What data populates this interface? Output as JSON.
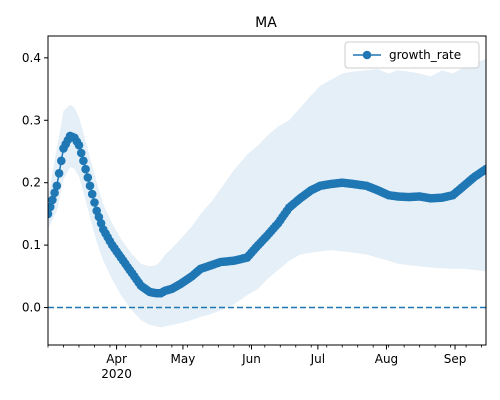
{
  "chart_data": {
    "type": "line",
    "title": "MA",
    "x_unit": "date",
    "xlim": [
      "2020-03-01",
      "2020-09-15"
    ],
    "ylim": [
      -0.06,
      0.435
    ],
    "yticks": [
      0.0,
      0.1,
      0.2,
      0.3,
      0.4
    ],
    "ytick_labels": [
      "0.0",
      "0.1",
      "0.2",
      "0.3",
      "0.4"
    ],
    "xticks": [
      {
        "date": "2020-04-01",
        "label": "Apr",
        "sublabel": "2020"
      },
      {
        "date": "2020-05-01",
        "label": "May",
        "sublabel": ""
      },
      {
        "date": "2020-06-01",
        "label": "Jun",
        "sublabel": ""
      },
      {
        "date": "2020-07-01",
        "label": "Jul",
        "sublabel": ""
      },
      {
        "date": "2020-08-01",
        "label": "Aug",
        "sublabel": ""
      },
      {
        "date": "2020-09-01",
        "label": "Sep",
        "sublabel": ""
      }
    ],
    "grid": false,
    "legend": {
      "position": "top-right",
      "entries": [
        "growth_rate"
      ]
    },
    "reference_line": {
      "y": 0.0,
      "style": "dashed"
    },
    "colors": {
      "line": "#1f77b4",
      "band": "#dce9f5"
    },
    "series": [
      {
        "name": "growth_rate",
        "marker": "circle",
        "x": [
          "2020-03-01",
          "2020-03-05",
          "2020-03-08",
          "2020-03-11",
          "2020-03-13",
          "2020-03-15",
          "2020-03-17",
          "2020-03-20",
          "2020-03-23",
          "2020-03-26",
          "2020-03-30",
          "2020-04-03",
          "2020-04-08",
          "2020-04-12",
          "2020-04-16",
          "2020-04-19",
          "2020-04-21",
          "2020-04-23",
          "2020-04-26",
          "2020-04-30",
          "2020-05-05",
          "2020-05-09",
          "2020-05-14",
          "2020-05-18",
          "2020-05-24",
          "2020-05-30",
          "2020-06-04",
          "2020-06-08",
          "2020-06-13",
          "2020-06-18",
          "2020-06-23",
          "2020-06-28",
          "2020-07-02",
          "2020-07-07",
          "2020-07-12",
          "2020-07-17",
          "2020-07-23",
          "2020-07-28",
          "2020-08-02",
          "2020-08-06",
          "2020-08-11",
          "2020-08-16",
          "2020-08-21",
          "2020-08-26",
          "2020-08-31",
          "2020-09-05",
          "2020-09-10",
          "2020-09-15"
        ],
        "y": [
          0.15,
          0.195,
          0.255,
          0.275,
          0.272,
          0.26,
          0.235,
          0.195,
          0.155,
          0.125,
          0.1,
          0.08,
          0.055,
          0.035,
          0.025,
          0.023,
          0.023,
          0.027,
          0.03,
          0.038,
          0.05,
          0.062,
          0.068,
          0.073,
          0.075,
          0.08,
          0.1,
          0.115,
          0.135,
          0.16,
          0.175,
          0.188,
          0.195,
          0.198,
          0.2,
          0.198,
          0.195,
          0.188,
          0.18,
          0.178,
          0.177,
          0.178,
          0.175,
          0.176,
          0.18,
          0.195,
          0.21,
          0.222
        ],
        "upper": [
          0.175,
          0.255,
          0.315,
          0.325,
          0.32,
          0.305,
          0.28,
          0.24,
          0.2,
          0.165,
          0.135,
          0.11,
          0.085,
          0.07,
          0.066,
          0.068,
          0.075,
          0.085,
          0.095,
          0.11,
          0.13,
          0.15,
          0.17,
          0.19,
          0.22,
          0.245,
          0.26,
          0.275,
          0.29,
          0.3,
          0.32,
          0.34,
          0.355,
          0.365,
          0.375,
          0.378,
          0.38,
          0.382,
          0.375,
          0.38,
          0.378,
          0.375,
          0.37,
          0.38,
          0.375,
          0.385,
          0.392,
          0.398
        ],
        "lower": [
          0.125,
          0.155,
          0.205,
          0.225,
          0.222,
          0.21,
          0.185,
          0.145,
          0.105,
          0.075,
          0.045,
          0.02,
          -0.005,
          -0.02,
          -0.028,
          -0.03,
          -0.032,
          -0.03,
          -0.028,
          -0.025,
          -0.02,
          -0.015,
          -0.01,
          -0.005,
          0.005,
          0.02,
          0.03,
          0.045,
          0.06,
          0.075,
          0.085,
          0.088,
          0.09,
          0.092,
          0.09,
          0.088,
          0.085,
          0.08,
          0.075,
          0.07,
          0.068,
          0.066,
          0.064,
          0.063,
          0.062,
          0.062,
          0.06,
          0.058
        ]
      }
    ]
  }
}
